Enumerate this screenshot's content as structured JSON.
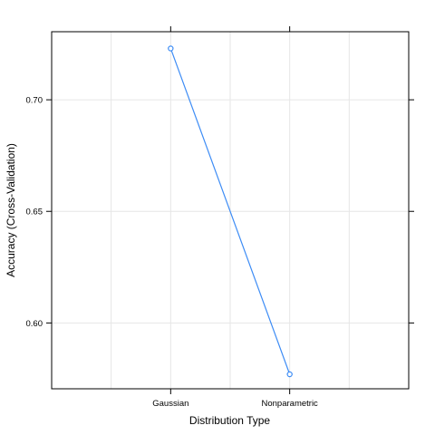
{
  "chart_data": {
    "type": "line",
    "categories": [
      "Gaussian",
      "Nonparametric"
    ],
    "series": [
      {
        "values": [
          0.723,
          0.577
        ]
      }
    ],
    "xlabel": "Distribution Type",
    "ylabel": "Accuracy (Cross-Validation)",
    "ylim": [
      0.5705,
      0.7305
    ],
    "yticks": [
      0.6,
      0.65,
      0.7
    ],
    "ytick_labels": [
      "0.60",
      "0.65",
      "0.70"
    ],
    "grid": true,
    "colors": {
      "line": "#3D8CF5",
      "grid": "#E6E6E6",
      "frame": "#000000"
    }
  }
}
